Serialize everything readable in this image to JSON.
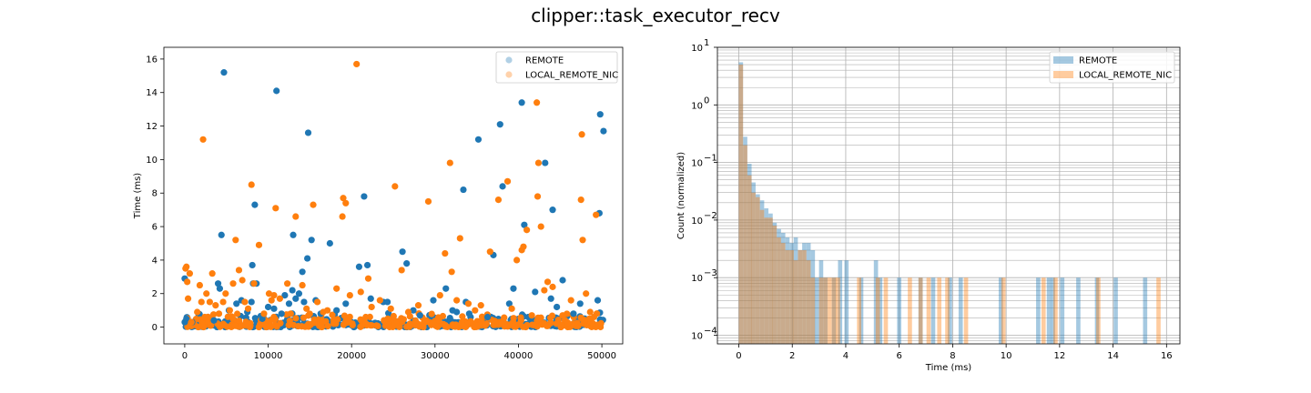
{
  "figure": {
    "title": "clipper::task_executor_recv"
  },
  "colors": {
    "remote": "#1f77b4",
    "local_remote_nic": "#ff7f0e"
  },
  "chart_data": [
    {
      "type": "scatter",
      "title": "",
      "xlabel": "",
      "ylabel": "Time (ms)",
      "xlim": [
        -2500,
        52500
      ],
      "ylim": [
        -1.0,
        16.7
      ],
      "xticks": [
        0,
        10000,
        20000,
        30000,
        40000,
        50000
      ],
      "xtick_labels": [
        "0",
        "10000",
        "20000",
        "30000",
        "40000",
        "50000"
      ],
      "yticks": [
        0,
        2,
        4,
        6,
        8,
        10,
        12,
        14,
        16
      ],
      "ytick_labels": [
        "0",
        "2",
        "4",
        "6",
        "8",
        "10",
        "12",
        "14",
        "16"
      ],
      "grid": false,
      "legend": "upper-right",
      "series": [
        {
          "name": "REMOTE",
          "color": "#1f77b4",
          "alpha": 0.35,
          "points": [
            [
              0,
              2.9
            ],
            [
              0,
              0.3
            ],
            [
              200,
              0.5
            ],
            [
              900,
              0.3
            ],
            [
              3500,
              0.4
            ],
            [
              4000,
              2.6
            ],
            [
              4200,
              2.3
            ],
            [
              4400,
              5.5
            ],
            [
              4700,
              15.2
            ],
            [
              5300,
              1.0
            ],
            [
              6200,
              1.4
            ],
            [
              6800,
              1.6
            ],
            [
              7500,
              0.9
            ],
            [
              8000,
              1.5
            ],
            [
              8100,
              3.7
            ],
            [
              8200,
              2.6
            ],
            [
              8400,
              7.3
            ],
            [
              8600,
              2.6
            ],
            [
              9300,
              0.5
            ],
            [
              10000,
              1.2
            ],
            [
              10700,
              1.1
            ],
            [
              11000,
              14.1
            ],
            [
              11600,
              0.8
            ],
            [
              12000,
              1.9
            ],
            [
              12500,
              1.4
            ],
            [
              12900,
              2.2
            ],
            [
              13000,
              5.5
            ],
            [
              13300,
              1.7
            ],
            [
              13700,
              2.0
            ],
            [
              14100,
              3.3
            ],
            [
              14300,
              1.5
            ],
            [
              14700,
              4.1
            ],
            [
              14800,
              11.6
            ],
            [
              15200,
              5.2
            ],
            [
              15700,
              1.6
            ],
            [
              16300,
              0.8
            ],
            [
              17400,
              5.0
            ],
            [
              18200,
              1.0
            ],
            [
              19300,
              1.4
            ],
            [
              20900,
              3.6
            ],
            [
              21500,
              7.8
            ],
            [
              21900,
              3.7
            ],
            [
              22300,
              1.7
            ],
            [
              23800,
              1.5
            ],
            [
              24300,
              1.5
            ],
            [
              26100,
              4.5
            ],
            [
              26600,
              3.8
            ],
            [
              27400,
              1.0
            ],
            [
              28200,
              0.7
            ],
            [
              29800,
              1.6
            ],
            [
              31300,
              2.3
            ],
            [
              32100,
              1.0
            ],
            [
              32600,
              0.9
            ],
            [
              33400,
              8.2
            ],
            [
              33700,
              1.5
            ],
            [
              34100,
              0.8
            ],
            [
              35200,
              11.2
            ],
            [
              36300,
              0.6
            ],
            [
              37000,
              4.3
            ],
            [
              37800,
              12.1
            ],
            [
              38100,
              8.4
            ],
            [
              38900,
              1.4
            ],
            [
              39400,
              2.3
            ],
            [
              40400,
              13.4
            ],
            [
              40700,
              6.1
            ],
            [
              41200,
              0.6
            ],
            [
              42000,
              2.1
            ],
            [
              43200,
              9.8
            ],
            [
              43900,
              1.7
            ],
            [
              44100,
              7.0
            ],
            [
              44600,
              1.2
            ],
            [
              45300,
              2.8
            ],
            [
              46600,
              0.8
            ],
            [
              47400,
              1.4
            ],
            [
              49500,
              1.6
            ],
            [
              49700,
              6.8
            ],
            [
              49800,
              12.7
            ],
            [
              50200,
              11.7
            ]
          ]
        },
        {
          "name": "LOCAL_REMOTE_NIC",
          "color": "#ff7f0e",
          "alpha": 0.35,
          "points": [
            [
              100,
              3.5
            ],
            [
              200,
              3.6
            ],
            [
              300,
              2.7
            ],
            [
              400,
              1.7
            ],
            [
              600,
              3.2
            ],
            [
              800,
              0.3
            ],
            [
              1500,
              0.9
            ],
            [
              1800,
              2.5
            ],
            [
              2000,
              1.5
            ],
            [
              2200,
              11.2
            ],
            [
              2400,
              0.6
            ],
            [
              2600,
              2.0
            ],
            [
              3000,
              1.5
            ],
            [
              3300,
              3.2
            ],
            [
              3700,
              1.3
            ],
            [
              4100,
              0.8
            ],
            [
              4600,
              1.5
            ],
            [
              4900,
              2.0
            ],
            [
              5400,
              1.0
            ],
            [
              5800,
              2.6
            ],
            [
              6100,
              5.2
            ],
            [
              6500,
              3.4
            ],
            [
              6900,
              2.8
            ],
            [
              7200,
              1.5
            ],
            [
              7600,
              1.1
            ],
            [
              8000,
              8.5
            ],
            [
              8300,
              2.6
            ],
            [
              8900,
              4.9
            ],
            [
              9500,
              0.8
            ],
            [
              10100,
              2.0
            ],
            [
              10400,
              1.6
            ],
            [
              10700,
              1.9
            ],
            [
              10900,
              7.1
            ],
            [
              11400,
              1.7
            ],
            [
              12300,
              2.6
            ],
            [
              12700,
              0.8
            ],
            [
              13300,
              6.6
            ],
            [
              14100,
              2.5
            ],
            [
              14600,
              1.1
            ],
            [
              15400,
              7.3
            ],
            [
              15900,
              1.5
            ],
            [
              16600,
              0.9
            ],
            [
              17100,
              1.0
            ],
            [
              18200,
              2.3
            ],
            [
              18900,
              6.6
            ],
            [
              19000,
              7.7
            ],
            [
              19300,
              7.4
            ],
            [
              19800,
              1.9
            ],
            [
              20600,
              15.7
            ],
            [
              21100,
              2.1
            ],
            [
              21700,
              0.6
            ],
            [
              22000,
              2.9
            ],
            [
              22400,
              1.2
            ],
            [
              23400,
              1.6
            ],
            [
              24700,
              1.1
            ],
            [
              25200,
              8.4
            ],
            [
              26000,
              3.4
            ],
            [
              26800,
              0.9
            ],
            [
              28000,
              1.3
            ],
            [
              29200,
              7.5
            ],
            [
              30600,
              1.9
            ],
            [
              31200,
              4.4
            ],
            [
              31800,
              9.8
            ],
            [
              32000,
              3.3
            ],
            [
              32600,
              1.6
            ],
            [
              33000,
              5.3
            ],
            [
              34000,
              1.4
            ],
            [
              34800,
              1.0
            ],
            [
              35500,
              1.3
            ],
            [
              36600,
              4.5
            ],
            [
              37600,
              7.6
            ],
            [
              38700,
              8.7
            ],
            [
              39200,
              1.1
            ],
            [
              39800,
              4.0
            ],
            [
              40400,
              4.6
            ],
            [
              40600,
              4.8
            ],
            [
              41000,
              5.8
            ],
            [
              41600,
              0.7
            ],
            [
              42200,
              13.4
            ],
            [
              42300,
              7.8
            ],
            [
              42400,
              9.8
            ],
            [
              42700,
              6.0
            ],
            [
              43100,
              2.2
            ],
            [
              43500,
              2.7
            ],
            [
              44100,
              2.4
            ],
            [
              45300,
              0.7
            ],
            [
              46300,
              1.6
            ],
            [
              47500,
              7.6
            ],
            [
              47600,
              11.5
            ],
            [
              47700,
              5.2
            ],
            [
              48100,
              2.0
            ],
            [
              48600,
              0.9
            ],
            [
              49300,
              6.7
            ]
          ]
        }
      ]
    },
    {
      "type": "bar",
      "title": "",
      "xlabel": "Time (ms)",
      "ylabel": "Count (normalized)",
      "xlim": [
        -0.8,
        16.5
      ],
      "ylim_log10": [
        -4.15,
        1.0
      ],
      "yscale": "log",
      "xticks": [
        0,
        2,
        4,
        6,
        8,
        10,
        12,
        14,
        16
      ],
      "xtick_labels": [
        "0",
        "2",
        "4",
        "6",
        "8",
        "10",
        "12",
        "14",
        "16"
      ],
      "yticks": [
        -4,
        -3,
        -2,
        -1,
        0,
        1
      ],
      "ytick_labels": [
        "10",
        "10",
        "10",
        "10",
        "10",
        "10"
      ],
      "ytick_exponents": [
        "−4",
        "−3",
        "−2",
        "−1",
        "0",
        "1"
      ],
      "grid": true,
      "legend": "upper-right",
      "bin_width": 0.158,
      "series": [
        {
          "name": "REMOTE",
          "color": "#1f77b4",
          "alpha": 0.4,
          "bins": [
            [
              0.08,
              5.5
            ],
            [
              0.24,
              0.28
            ],
            [
              0.4,
              0.095
            ],
            [
              0.55,
              0.045
            ],
            [
              0.71,
              0.028
            ],
            [
              0.87,
              0.022
            ],
            [
              1.03,
              0.016
            ],
            [
              1.19,
              0.013
            ],
            [
              1.34,
              0.009
            ],
            [
              1.5,
              0.007
            ],
            [
              1.66,
              0.006
            ],
            [
              1.82,
              0.005
            ],
            [
              1.98,
              0.004
            ],
            [
              2.13,
              0.005
            ],
            [
              2.29,
              0.003
            ],
            [
              2.45,
              0.004
            ],
            [
              2.61,
              0.004
            ],
            [
              2.77,
              0.003
            ],
            [
              2.92,
              0.001
            ],
            [
              3.08,
              0.002
            ],
            [
              3.24,
              0.001
            ],
            [
              3.56,
              0.001
            ],
            [
              3.79,
              0.002
            ],
            [
              4.03,
              0.002
            ],
            [
              4.58,
              0.001
            ],
            [
              5.13,
              0.002
            ],
            [
              5.29,
              0.001
            ],
            [
              6.0,
              0.001
            ],
            [
              6.8,
              0.001
            ],
            [
              7.27,
              0.001
            ],
            [
              7.9,
              0.001
            ],
            [
              8.3,
              0.001
            ],
            [
              9.8,
              0.001
            ],
            [
              11.2,
              0.001
            ],
            [
              11.6,
              0.001
            ],
            [
              11.75,
              0.001
            ],
            [
              12.1,
              0.001
            ],
            [
              12.7,
              0.001
            ],
            [
              13.4,
              0.001
            ],
            [
              14.1,
              0.001
            ],
            [
              15.2,
              0.001
            ]
          ]
        },
        {
          "name": "LOCAL_REMOTE_NIC",
          "color": "#ff7f0e",
          "alpha": 0.4,
          "bins": [
            [
              0.08,
              5.0
            ],
            [
              0.24,
              0.2
            ],
            [
              0.4,
              0.06
            ],
            [
              0.55,
              0.03
            ],
            [
              0.71,
              0.025
            ],
            [
              0.87,
              0.015
            ],
            [
              1.03,
              0.011
            ],
            [
              1.19,
              0.011
            ],
            [
              1.34,
              0.008
            ],
            [
              1.5,
              0.005
            ],
            [
              1.66,
              0.004
            ],
            [
              1.82,
              0.003
            ],
            [
              1.98,
              0.003
            ],
            [
              2.13,
              0.002
            ],
            [
              2.29,
              0.003
            ],
            [
              2.45,
              0.003
            ],
            [
              2.61,
              0.002
            ],
            [
              2.77,
              0.001
            ],
            [
              3.08,
              0.001
            ],
            [
              3.24,
              0.001
            ],
            [
              3.4,
              0.001
            ],
            [
              3.56,
              0.001
            ],
            [
              3.71,
              0.001
            ],
            [
              4.5,
              0.001
            ],
            [
              5.2,
              0.001
            ],
            [
              5.5,
              0.001
            ],
            [
              6.4,
              0.001
            ],
            [
              6.8,
              0.001
            ],
            [
              7.1,
              0.001
            ],
            [
              7.5,
              0.001
            ],
            [
              7.8,
              0.001
            ],
            [
              8.5,
              0.001
            ],
            [
              9.9,
              0.001
            ],
            [
              11.4,
              0.001
            ],
            [
              11.85,
              0.001
            ],
            [
              13.45,
              0.001
            ],
            [
              15.7,
              0.001
            ]
          ]
        }
      ]
    }
  ]
}
